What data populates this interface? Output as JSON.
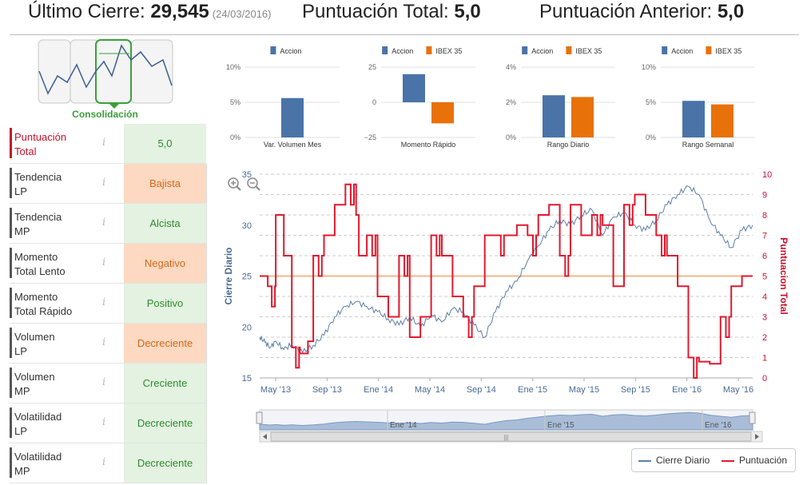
{
  "header": {
    "last_close_label": "Último Cierre:",
    "last_close_value": "29,545",
    "last_close_date": "(24/03/2016)",
    "total_score_label": "Puntuación Total:",
    "total_score_value": "5,0",
    "prev_score_label": "Puntuación Anterior:",
    "prev_score_value": "5,0"
  },
  "phase": {
    "label": "Consolidación"
  },
  "indicators": [
    {
      "label1": "Puntuación",
      "label2": "Total",
      "value": "5,0",
      "state": "pos",
      "highlight": true
    },
    {
      "label1": "Tendencia",
      "label2": "LP",
      "value": "Bajista",
      "state": "neg"
    },
    {
      "label1": "Tendencia",
      "label2": "MP",
      "value": "Alcista",
      "state": "pos"
    },
    {
      "label1": "Momento",
      "label2": "Total Lento",
      "value": "Negativo",
      "state": "neg"
    },
    {
      "label1": "Momento",
      "label2": "Total Rápido",
      "value": "Positivo",
      "state": "pos"
    },
    {
      "label1": "Volumen",
      "label2": "LP",
      "value": "Decreciente",
      "state": "neg"
    },
    {
      "label1": "Volumen",
      "label2": "MP",
      "value": "Creciente",
      "state": "pos"
    },
    {
      "label1": "Volatilidad",
      "label2": "LP",
      "value": "Decreciente",
      "state": "pos"
    },
    {
      "label1": "Volatilidad",
      "label2": "MP",
      "value": "Decreciente",
      "state": "pos"
    }
  ],
  "info_glyph": "i",
  "colors": {
    "accion": "#4a73a8",
    "ibex": "#e8710a",
    "price": "#5b7fa8",
    "score": "#e0192e",
    "ref": "#f0b888",
    "green": "#3aa03a"
  },
  "chart_data": [
    {
      "type": "bar",
      "title": "",
      "xlabel": "Var. Volumen Mes",
      "yticks": [
        "10%",
        "5%",
        "0%"
      ],
      "ylim": [
        0,
        10
      ],
      "series": [
        {
          "name": "Accion",
          "values": [
            5.6
          ]
        }
      ]
    },
    {
      "type": "bar",
      "title": "",
      "xlabel": "Momento Rápido",
      "yticks": [
        "25",
        "0",
        "−25"
      ],
      "ylim": [
        -25,
        25
      ],
      "series": [
        {
          "name": "Accion",
          "values": [
            20
          ]
        },
        {
          "name": "IBEX 35",
          "values": [
            -15
          ]
        }
      ]
    },
    {
      "type": "bar",
      "title": "",
      "xlabel": "Rango Diario",
      "yticks": [
        "4%",
        "2%",
        "0%"
      ],
      "ylim": [
        0,
        4
      ],
      "series": [
        {
          "name": "Accion",
          "values": [
            2.4
          ]
        },
        {
          "name": "IBEX 35",
          "values": [
            2.3
          ]
        }
      ]
    },
    {
      "type": "bar",
      "title": "",
      "xlabel": "Rango Semanal",
      "yticks": [
        "10%",
        "5%",
        "0%"
      ],
      "ylim": [
        0,
        10
      ],
      "series": [
        {
          "name": "Accion",
          "values": [
            5.2
          ]
        },
        {
          "name": "IBEX 35",
          "values": [
            4.7
          ]
        }
      ]
    },
    {
      "type": "line",
      "ylabel": "Cierre Diario",
      "y2label": "Puntuacion Total",
      "ylim": [
        15,
        35
      ],
      "y2lim": [
        0,
        10
      ],
      "yticks": [
        "35",
        "30",
        "25",
        "20",
        "15"
      ],
      "y2ticks": [
        "10",
        "9",
        "8",
        "7",
        "6",
        "5",
        "4",
        "3",
        "2",
        "1",
        "0"
      ],
      "xticks": [
        "May '13",
        "Sep '13",
        "Ene '14",
        "May '14",
        "Sep '14",
        "Ene '15",
        "May '15",
        "Sep '15",
        "Ene '16",
        "May '16"
      ],
      "navigator_labels": [
        "Ene '14",
        "Ene '15",
        "Ene '16"
      ],
      "reference_value": 5,
      "series": [
        {
          "name": "Cierre Diario",
          "axis": "left",
          "x": [
            0,
            0.1,
            0.2,
            0.3,
            0.45,
            0.6,
            0.8,
            1.0,
            1.2,
            1.4,
            1.6,
            1.8,
            2.0,
            2.2,
            2.4,
            2.6,
            2.8,
            3.0,
            3.2,
            3.4,
            3.6,
            3.8,
            4.0,
            4.2,
            4.4,
            4.6,
            4.8,
            5.0,
            5.2,
            5.4,
            5.6,
            5.8,
            6.0,
            6.2,
            6.4,
            6.6,
            6.8,
            7.0,
            7.2,
            7.4,
            7.6,
            7.8,
            8.0,
            8.2,
            8.4,
            8.6,
            8.8,
            9.0,
            9.2
          ],
          "values": [
            19.0,
            18.5,
            18.0,
            18.6,
            17.8,
            18.3,
            17.5,
            18.2,
            19.2,
            21.0,
            22.0,
            22.5,
            22.0,
            21.5,
            20.8,
            20.2,
            21.0,
            20.0,
            21.2,
            20.5,
            21.8,
            21.5,
            20.2,
            19.0,
            21.5,
            23.5,
            24.5,
            26.5,
            28.0,
            29.5,
            30.5,
            30.0,
            31.0,
            31.5,
            29.0,
            30.8,
            31.2,
            30.0,
            29.5,
            30.5,
            32.0,
            33.0,
            33.8,
            33.0,
            30.5,
            29.0,
            27.8,
            29.5,
            30.0
          ]
        },
        {
          "name": "Puntuación",
          "axis": "right",
          "x": [
            0,
            0.15,
            0.3,
            0.45,
            0.6,
            0.75,
            0.9,
            1.0,
            1.2,
            1.4,
            1.6,
            1.8,
            1.85,
            2.0,
            2.2,
            2.4,
            2.6,
            2.8,
            3.0,
            3.2,
            3.4,
            3.6,
            3.8,
            4.0,
            4.2,
            4.4,
            4.6,
            4.8,
            5.0,
            5.2,
            5.4,
            5.6,
            5.8,
            6.0,
            6.2,
            6.4,
            6.6,
            6.8,
            7.0,
            7.2,
            7.4,
            7.6,
            7.8,
            8.0,
            8.2,
            8.4,
            8.6,
            8.8,
            9.0,
            9.2
          ],
          "values": [
            5,
            4.5,
            8,
            6,
            1.5,
            1.2,
            1.8,
            6,
            7,
            8.5,
            9.5,
            8,
            6,
            7,
            4,
            3,
            6,
            2,
            3,
            7,
            6,
            4,
            3,
            4.5,
            7,
            7,
            7,
            7.5,
            7,
            8,
            8.5,
            6,
            8.5,
            7,
            8,
            7.5,
            4.5,
            8.5,
            9,
            8,
            7,
            6,
            4.5,
            1,
            0.8,
            0.7,
            3,
            4.5,
            5,
            5
          ]
        }
      ]
    }
  ]
}
